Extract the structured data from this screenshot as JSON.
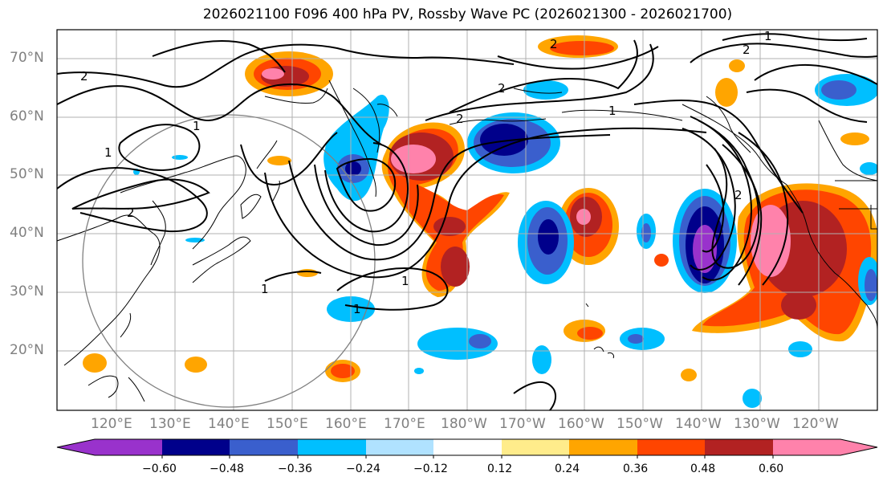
{
  "title": "2026021100 F096 400 hPa PV, Rossby Wave PC (2026021300 - 2026021700)",
  "map": {
    "lat_labels": [
      "70°N",
      "60°N",
      "50°N",
      "40°N",
      "30°N",
      "20°N"
    ],
    "lon_labels": [
      "120°E",
      "130°E",
      "140°E",
      "150°E",
      "160°E",
      "170°E",
      "180°W",
      "170°W",
      "160°W",
      "150°W",
      "140°W",
      "130°W",
      "120°W"
    ],
    "contour_labels": [
      "2",
      "2",
      "2",
      "2",
      "2",
      "1",
      "1",
      "1",
      "1",
      "1",
      "1",
      "2",
      "2",
      "1"
    ]
  },
  "colorbar": {
    "ticks": [
      "−0.60",
      "−0.48",
      "−0.36",
      "−0.24",
      "−0.12",
      "0.12",
      "0.24",
      "0.36",
      "0.48",
      "0.60"
    ],
    "colors": [
      "#9932CC",
      "#00008B",
      "#3A5FCD",
      "#00BFFF",
      "#B0E2FF",
      "#FFFFFF",
      "#FFEC8B",
      "#FFA500",
      "#FF4500",
      "#B22222",
      "#FF82AB"
    ]
  }
}
